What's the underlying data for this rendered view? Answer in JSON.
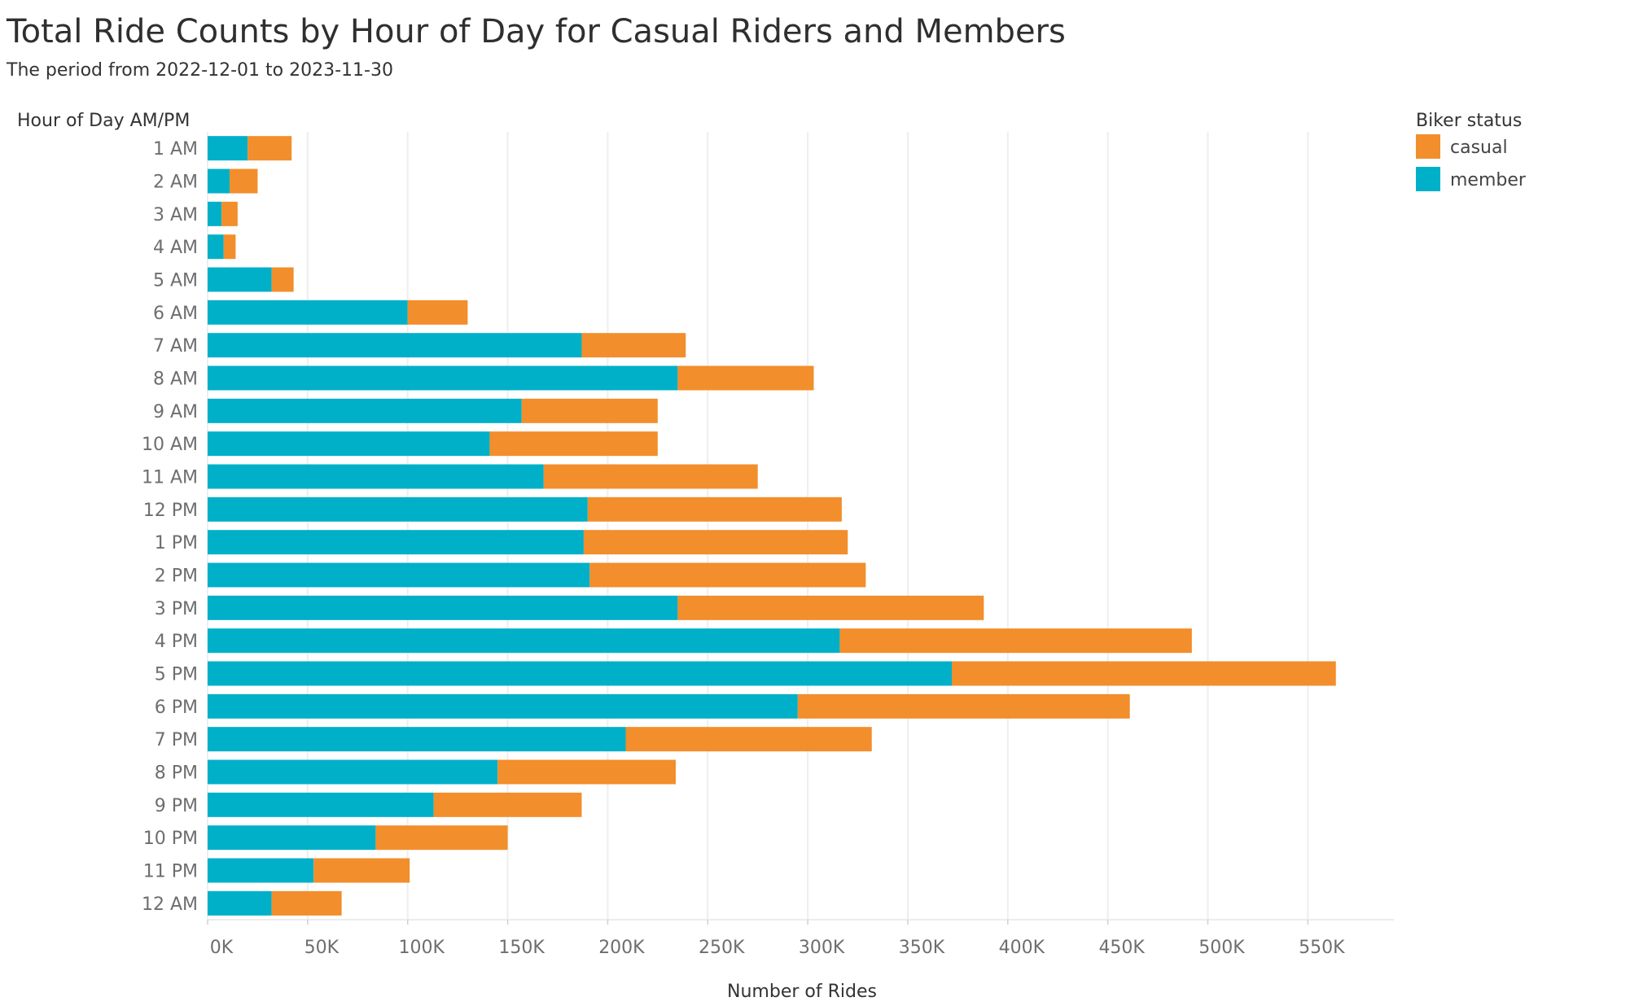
{
  "chart_data": {
    "type": "bar",
    "orientation": "horizontal",
    "stacked": true,
    "title": "Total Ride Counts by Hour of Day for Casual Riders and Members",
    "subtitle": "The period from 2022-12-01 to 2023-11-30",
    "ylabel": "Hour of Day AM/PM",
    "xlabel": "Number of Rides",
    "xlim": [
      0,
      593000
    ],
    "x_ticks": [
      0,
      50000,
      100000,
      150000,
      200000,
      250000,
      300000,
      350000,
      400000,
      450000,
      500000,
      550000
    ],
    "x_tick_labels": [
      "0K",
      "50K",
      "100K",
      "150K",
      "200K",
      "250K",
      "300K",
      "350K",
      "400K",
      "450K",
      "500K",
      "550K"
    ],
    "grid": "vertical",
    "categories": [
      "1 AM",
      "2 AM",
      "3 AM",
      "4 AM",
      "5 AM",
      "6 AM",
      "7 AM",
      "8 AM",
      "9 AM",
      "10 AM",
      "11 AM",
      "12 PM",
      "1 PM",
      "2 PM",
      "3 PM",
      "4 PM",
      "5 PM",
      "6 PM",
      "7 PM",
      "8 PM",
      "9 PM",
      "10 PM",
      "11 PM",
      "12 AM"
    ],
    "series": [
      {
        "name": "member",
        "color": "#00b0c8",
        "values": [
          20000,
          11000,
          7000,
          8000,
          32000,
          100000,
          187000,
          235000,
          157000,
          141000,
          168000,
          190000,
          188000,
          191000,
          235000,
          316000,
          372000,
          295000,
          209000,
          145000,
          113000,
          84000,
          53000,
          32000
        ]
      },
      {
        "name": "casual",
        "color": "#f28e2b",
        "values": [
          22000,
          14000,
          8000,
          6000,
          11000,
          30000,
          52000,
          68000,
          68000,
          84000,
          107000,
          127000,
          132000,
          138000,
          153000,
          176000,
          192000,
          166000,
          123000,
          89000,
          74000,
          66000,
          48000,
          35000
        ]
      }
    ],
    "legend": {
      "title": "Biker status",
      "position": "top-right",
      "items": [
        {
          "label": "casual",
          "color": "#f28e2b"
        },
        {
          "label": "member",
          "color": "#00b0c8"
        }
      ]
    }
  }
}
